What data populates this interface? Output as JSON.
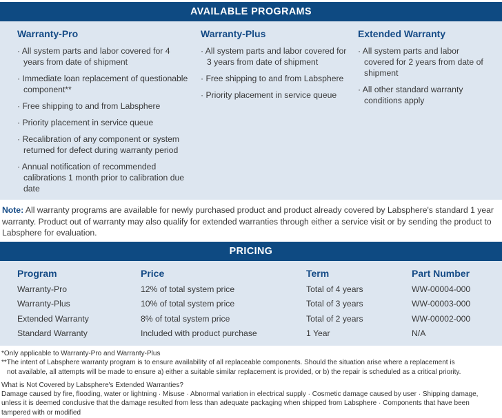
{
  "programs": {
    "title": "AVAILABLE PROGRAMS",
    "columns": [
      {
        "name": "Warranty-Pro",
        "items": [
          "All system parts and labor covered for 4 years from date of shipment",
          "Immediate loan replacement of questionable component**",
          "Free shipping to and from Labsphere",
          "Priority placement in service queue",
          "Recalibration of any component or system returned for defect during warranty period",
          "Annual notification of recommended calibrations 1 month prior to calibration due date"
        ]
      },
      {
        "name": "Warranty-Plus",
        "items": [
          "All system parts and labor covered for 3 years from date of shipment",
          "Free shipping to and from Labsphere",
          "Priority placement in service queue"
        ]
      },
      {
        "name": "Extended Warranty",
        "items": [
          "All system parts and labor covered for 2 years from date of shipment",
          "All other standard warranty conditions apply"
        ]
      }
    ]
  },
  "note": {
    "label": "Note:",
    "text": " All warranty programs are available for newly purchased product and product already covered by Labsphere's standard 1 year warranty.  Product out of warranty may also qualify for extended warranties through either a service visit or by sending the product to Labsphere for evaluation."
  },
  "pricing": {
    "title": "PRICING",
    "headers": [
      "Program",
      "Price",
      "Term",
      "Part Number"
    ],
    "rows": [
      [
        "Warranty-Pro",
        "12% of total system price",
        "Total of 4 years",
        "WW-00004-000"
      ],
      [
        "Warranty-Plus",
        "10% of total system price",
        "Total of 3 years",
        "WW-00003-000"
      ],
      [
        "Extended Warranty",
        "8%  of total system price",
        "Total of 2 years",
        "WW-00002-000"
      ],
      [
        "Standard Warranty",
        "Included with product purchase",
        "1 Year",
        "N/A"
      ]
    ]
  },
  "footnotes": {
    "f1": "*Only applicable to Warranty-Pro and Warranty-Plus",
    "f2a": "**The intent of Labsphere warranty program is to ensure availability of all replaceable components.  Should the situation arise where a replacement is",
    "f2b": "not available, all attempts will be made to ensure a) either a suitable similar replacement is provided, or b) the repair is scheduled as a critical priority.",
    "q": "What is Not Covered by Labsphere's Extended Warranties?",
    "exclusions": "Damage caused by fire, flooding, water or lightning · Misuse · Abnormal variation in electrical supply · Cosmetic damage caused by user · Shipping damage, unless it is deemed conclusive that the damage resulted from less than adequate packaging when shipped from Labsphere · Components that have been tampered with or modified"
  }
}
